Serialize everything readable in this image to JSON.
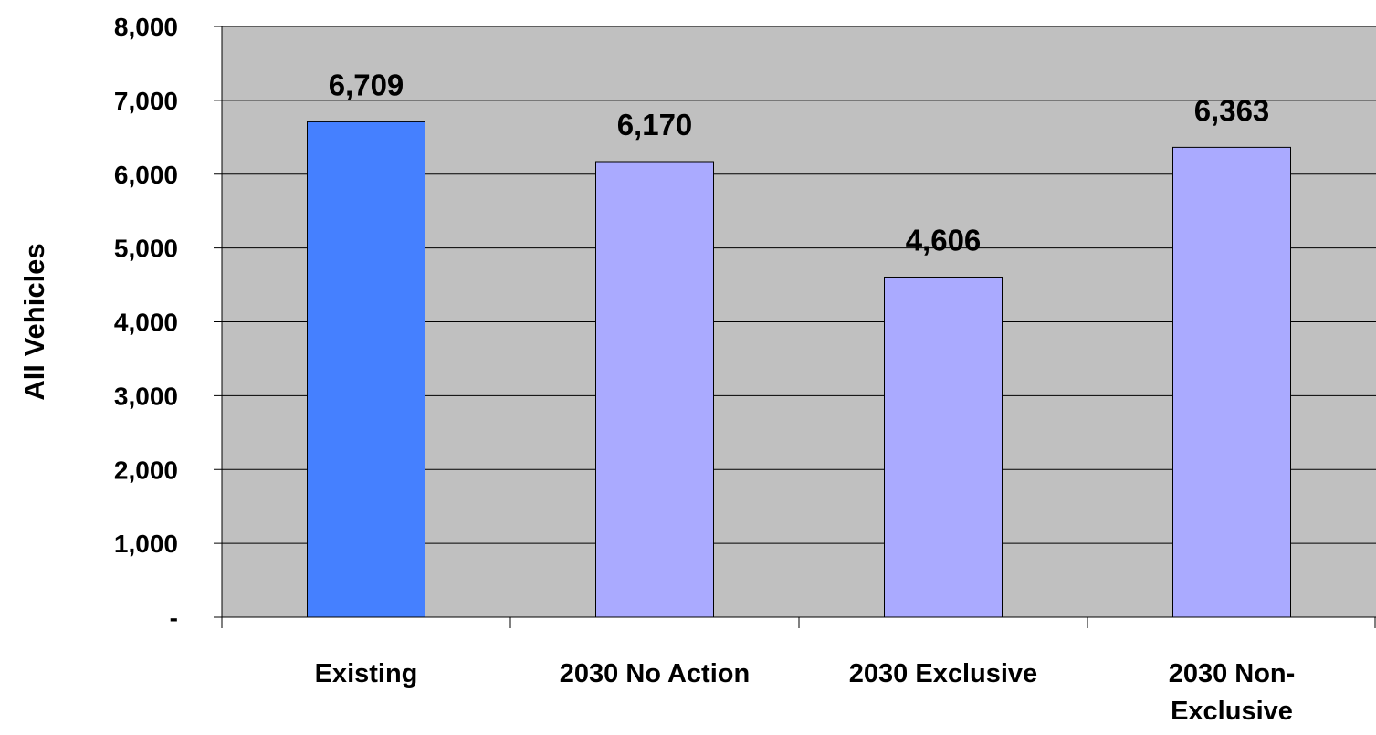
{
  "chart_data": {
    "type": "bar",
    "categories": [
      "Existing",
      "2030 No Action",
      "2030 Exclusive",
      "2030 Non-Exclusive"
    ],
    "category_lines": [
      [
        "Existing"
      ],
      [
        "2030 No Action"
      ],
      [
        "2030 Exclusive"
      ],
      [
        "2030 Non-",
        "Exclusive"
      ]
    ],
    "values": [
      6709,
      6170,
      4606,
      6363
    ],
    "data_labels": [
      "6,709",
      "6,170",
      "4,606",
      "6,363"
    ],
    "ylabel": "All Vehicles",
    "xlabel": "",
    "ylim": [
      0,
      8000
    ],
    "yticks": [
      0,
      1000,
      2000,
      3000,
      4000,
      5000,
      6000,
      7000,
      8000
    ],
    "ytick_labels": [
      "-",
      "1,000",
      "2,000",
      "3,000",
      "4,000",
      "5,000",
      "6,000",
      "7,000",
      "8,000"
    ],
    "grid": true,
    "legend": "none",
    "bar_colors": [
      "#4580ff",
      "#aaaaff",
      "#aaaaff",
      "#aaaaff"
    ],
    "plot_background": "#c0c0c0"
  }
}
